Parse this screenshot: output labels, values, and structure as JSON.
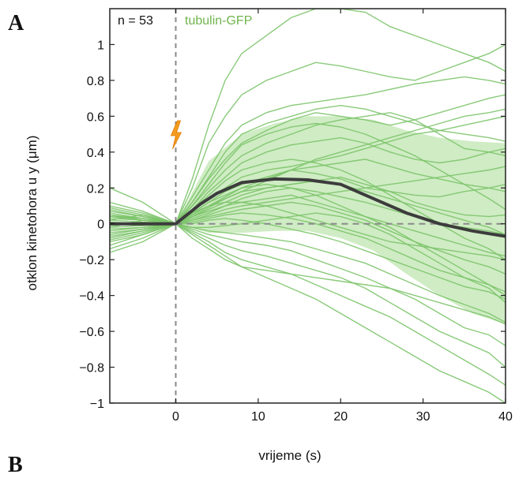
{
  "panel_label_a": "A",
  "panel_label_b": "B",
  "n_label": "n = 53",
  "series_label": "tubulin-GFP",
  "colors": {
    "traces": "#7cc46a",
    "band": "#bfe6b0",
    "mean": "#3c3c3c",
    "flash": "#f39c1e"
  },
  "chart_data": {
    "type": "line",
    "xlabel": "vrijeme (s)",
    "ylabel": "otklon kinetohora u y (μm)",
    "xlim": [
      -8,
      40
    ],
    "ylim": [
      -1,
      1.2
    ],
    "xticks": [
      0,
      10,
      20,
      30,
      40
    ],
    "yticks": [
      -1,
      -0.8,
      -0.6,
      -0.4,
      -0.2,
      0,
      0.2,
      0.4,
      0.6,
      0.8,
      1
    ],
    "ytick_labels": [
      "−1",
      "−0.8",
      "−0.6",
      "−0.4",
      "−0.2",
      "0",
      "0.2",
      "0.4",
      "0.6",
      "0.8",
      "1"
    ],
    "event_marker": {
      "x": 0,
      "icon": "lightning-bolt-icon"
    },
    "mean": {
      "x": [
        -8,
        -6,
        -4,
        -2,
        0,
        3,
        5,
        8,
        12,
        16,
        20,
        24,
        28,
        32,
        36,
        40
      ],
      "y": [
        0,
        0,
        0,
        0,
        0,
        0.11,
        0.17,
        0.23,
        0.25,
        0.245,
        0.22,
        0.14,
        0.06,
        0,
        -0.04,
        -0.07
      ]
    },
    "spread_band": {
      "x": [
        0,
        4,
        8,
        12,
        16,
        20,
        24,
        28,
        32,
        36,
        40
      ],
      "upper": [
        0,
        0.35,
        0.5,
        0.56,
        0.6,
        0.6,
        0.58,
        0.52,
        0.48,
        0.46,
        0.45
      ],
      "lower": [
        0,
        -0.05,
        -0.05,
        -0.04,
        -0.04,
        -0.08,
        -0.15,
        -0.28,
        -0.4,
        -0.5,
        -0.56
      ]
    },
    "traces": [
      {
        "x": [
          -8,
          -4,
          0,
          2,
          4,
          6,
          8,
          11,
          14,
          17,
          20,
          23,
          26,
          29,
          32,
          35,
          38,
          40
        ],
        "y": [
          0.04,
          0.03,
          0,
          0.25,
          0.55,
          0.8,
          0.95,
          1.05,
          1.15,
          1.2,
          1.2,
          1.18,
          1.1,
          1.05,
          1.0,
          0.95,
          0.9,
          0.85
        ]
      },
      {
        "x": [
          -8,
          -4,
          0,
          2,
          4,
          6,
          8,
          11,
          14,
          17,
          20,
          23,
          26,
          29,
          32,
          35,
          38,
          40
        ],
        "y": [
          -0.03,
          -0.02,
          0,
          0.2,
          0.45,
          0.6,
          0.72,
          0.8,
          0.85,
          0.9,
          0.88,
          0.85,
          0.82,
          0.8,
          0.85,
          0.9,
          0.95,
          1.0
        ]
      },
      {
        "x": [
          -8,
          -4,
          0,
          2,
          4,
          6,
          8,
          11,
          14,
          17,
          20,
          23,
          26,
          29,
          32,
          35,
          38,
          40
        ],
        "y": [
          0.02,
          0.05,
          0,
          0.15,
          0.3,
          0.45,
          0.55,
          0.62,
          0.66,
          0.68,
          0.7,
          0.72,
          0.75,
          0.78,
          0.8,
          0.82,
          0.8,
          0.78
        ]
      },
      {
        "x": [
          -8,
          -4,
          0,
          2,
          4,
          6,
          8,
          11,
          14,
          17,
          20,
          23,
          26,
          29,
          32,
          35,
          38,
          40
        ],
        "y": [
          0.1,
          0.06,
          0,
          0.12,
          0.25,
          0.36,
          0.45,
          0.52,
          0.58,
          0.62,
          0.6,
          0.58,
          0.55,
          0.58,
          0.62,
          0.66,
          0.7,
          0.72
        ]
      },
      {
        "x": [
          -8,
          -4,
          0,
          2,
          4,
          6,
          8,
          11,
          14,
          17,
          20,
          23,
          26,
          29,
          32,
          35,
          38,
          40
        ],
        "y": [
          -0.08,
          -0.04,
          0,
          0.1,
          0.2,
          0.3,
          0.38,
          0.45,
          0.5,
          0.55,
          0.58,
          0.6,
          0.62,
          0.58,
          0.5,
          0.42,
          0.4,
          0.38
        ]
      },
      {
        "x": [
          -8,
          -4,
          0,
          2,
          4,
          6,
          8,
          11,
          14,
          17,
          20,
          23,
          26,
          29,
          32,
          35,
          38,
          40
        ],
        "y": [
          0.05,
          0.02,
          0,
          0.08,
          0.18,
          0.26,
          0.34,
          0.4,
          0.44,
          0.46,
          0.48,
          0.45,
          0.4,
          0.36,
          0.34,
          0.36,
          0.4,
          0.42
        ]
      },
      {
        "x": [
          -8,
          -4,
          0,
          2,
          4,
          6,
          8,
          11,
          14,
          17,
          20,
          23,
          26,
          29,
          32,
          35,
          38,
          40
        ],
        "y": [
          -0.05,
          -0.03,
          0,
          0.07,
          0.14,
          0.2,
          0.26,
          0.3,
          0.32,
          0.35,
          0.38,
          0.42,
          0.46,
          0.5,
          0.52,
          0.55,
          0.58,
          0.6
        ]
      },
      {
        "x": [
          -8,
          -4,
          0,
          2,
          4,
          6,
          8,
          11,
          14,
          17,
          20,
          23,
          26,
          29,
          32,
          35,
          38,
          40
        ],
        "y": [
          0.02,
          0.01,
          0,
          0.06,
          0.12,
          0.18,
          0.22,
          0.26,
          0.3,
          0.28,
          0.25,
          0.2,
          0.18,
          0.16,
          0.15,
          0.18,
          0.2,
          0.22
        ]
      },
      {
        "x": [
          -8,
          -4,
          0,
          2,
          4,
          6,
          8,
          11,
          14,
          17,
          20,
          23,
          26,
          29,
          32,
          35,
          38,
          40
        ],
        "y": [
          -0.02,
          0.02,
          0,
          0.05,
          0.1,
          0.15,
          0.2,
          0.25,
          0.3,
          0.32,
          0.34,
          0.36,
          0.32,
          0.28,
          0.25,
          0.22,
          0.2,
          0.18
        ]
      },
      {
        "x": [
          -8,
          -4,
          0,
          2,
          4,
          6,
          8,
          11,
          14,
          17,
          20,
          23,
          26,
          29,
          32,
          35,
          38,
          40
        ],
        "y": [
          0.06,
          0.03,
          0,
          0.04,
          0.08,
          0.12,
          0.16,
          0.2,
          0.22,
          0.24,
          0.26,
          0.22,
          0.18,
          0.12,
          0.08,
          0.05,
          0.04,
          0.05
        ]
      },
      {
        "x": [
          -8,
          -4,
          0,
          2,
          4,
          6,
          8,
          11,
          14,
          17,
          20,
          23,
          26,
          29,
          32,
          35,
          38,
          40
        ],
        "y": [
          -0.1,
          -0.06,
          0,
          0.03,
          0.06,
          0.1,
          0.14,
          0.18,
          0.2,
          0.18,
          0.15,
          0.12,
          0.08,
          0.04,
          0.0,
          -0.02,
          -0.04,
          -0.06
        ]
      },
      {
        "x": [
          -8,
          -4,
          0,
          2,
          4,
          6,
          8,
          11,
          14,
          17,
          20,
          23,
          26,
          29,
          32,
          35,
          38,
          40
        ],
        "y": [
          0.03,
          0.02,
          0,
          0.04,
          0.07,
          0.1,
          0.12,
          0.14,
          0.16,
          0.12,
          0.08,
          0.04,
          0.0,
          -0.04,
          -0.08,
          -0.12,
          -0.16,
          -0.18
        ]
      },
      {
        "x": [
          -8,
          -4,
          0,
          2,
          4,
          6,
          8,
          11,
          14,
          17,
          20,
          23,
          26,
          29,
          32,
          35,
          38,
          40
        ],
        "y": [
          -0.04,
          -0.02,
          0,
          0.02,
          0.04,
          0.06,
          0.08,
          0.1,
          0.12,
          0.1,
          0.06,
          0.02,
          -0.04,
          -0.1,
          -0.15,
          -0.2,
          -0.24,
          -0.28
        ]
      },
      {
        "x": [
          -8,
          -4,
          0,
          2,
          4,
          6,
          8,
          11,
          14,
          17,
          20,
          23,
          26,
          29,
          32,
          35,
          38,
          40
        ],
        "y": [
          0.05,
          0.03,
          0,
          0.01,
          0.03,
          0.05,
          0.06,
          0.05,
          0.03,
          0.0,
          -0.04,
          -0.08,
          -0.14,
          -0.2,
          -0.26,
          -0.3,
          -0.34,
          -0.38
        ]
      },
      {
        "x": [
          -8,
          -4,
          0,
          2,
          4,
          6,
          8,
          11,
          14,
          17,
          20,
          23,
          26,
          29,
          32,
          35,
          38,
          40
        ],
        "y": [
          -0.06,
          -0.03,
          0,
          0.0,
          0.02,
          0.03,
          0.02,
          0.0,
          -0.03,
          -0.06,
          -0.1,
          -0.15,
          -0.2,
          -0.25,
          -0.3,
          -0.35,
          -0.38,
          -0.42
        ]
      },
      {
        "x": [
          -8,
          -4,
          0,
          2,
          4,
          6,
          8,
          11,
          14,
          17,
          20,
          23,
          26,
          29,
          32,
          35,
          38,
          40
        ],
        "y": [
          0.0,
          -0.01,
          0,
          -0.02,
          -0.04,
          -0.05,
          -0.06,
          -0.08,
          -0.1,
          -0.14,
          -0.18,
          -0.22,
          -0.28,
          -0.34,
          -0.4,
          -0.45,
          -0.5,
          -0.55
        ]
      },
      {
        "x": [
          -8,
          -4,
          0,
          2,
          4,
          6,
          8,
          11,
          14,
          17,
          20,
          23,
          26,
          29,
          32,
          35,
          38,
          40
        ],
        "y": [
          0.08,
          0.04,
          0,
          -0.03,
          -0.06,
          -0.08,
          -0.1,
          -0.12,
          -0.15,
          -0.2,
          -0.25,
          -0.3,
          -0.36,
          -0.42,
          -0.5,
          -0.58,
          -0.62,
          -0.68
        ]
      },
      {
        "x": [
          -8,
          -4,
          0,
          2,
          4,
          6,
          8,
          11,
          14,
          17,
          20,
          23,
          26,
          29,
          32,
          35,
          38,
          40
        ],
        "y": [
          -0.12,
          -0.06,
          0,
          -0.04,
          -0.08,
          -0.12,
          -0.15,
          -0.18,
          -0.22,
          -0.26,
          -0.3,
          -0.36,
          -0.44,
          -0.52,
          -0.6,
          -0.66,
          -0.72,
          -0.8
        ]
      },
      {
        "x": [
          -8,
          -4,
          0,
          2,
          4,
          6,
          8,
          11,
          14,
          17,
          20,
          23,
          26,
          29,
          32,
          35,
          38,
          40
        ],
        "y": [
          0.04,
          0.02,
          0,
          -0.05,
          -0.1,
          -0.16,
          -0.2,
          -0.24,
          -0.28,
          -0.34,
          -0.4,
          -0.46,
          -0.52,
          -0.6,
          -0.68,
          -0.76,
          -0.84,
          -0.9
        ]
      },
      {
        "x": [
          -8,
          -4,
          0,
          2,
          4,
          6,
          8,
          11,
          14,
          17,
          20,
          23,
          26,
          29,
          32,
          35,
          38,
          40
        ],
        "y": [
          -0.02,
          -0.01,
          0,
          -0.06,
          -0.12,
          -0.18,
          -0.24,
          -0.3,
          -0.36,
          -0.42,
          -0.5,
          -0.58,
          -0.66,
          -0.74,
          -0.82,
          -0.88,
          -0.94,
          -1.0
        ]
      },
      {
        "x": [
          -8,
          -4,
          0,
          2,
          4,
          6,
          8,
          11,
          14,
          17,
          20,
          23,
          26,
          29,
          32,
          35,
          38,
          40
        ],
        "y": [
          0.07,
          0.04,
          0,
          0.06,
          0.12,
          0.16,
          0.2,
          0.22,
          0.2,
          0.16,
          0.1,
          0.04,
          -0.02,
          -0.1,
          -0.18,
          -0.26,
          -0.34,
          -0.4
        ]
      },
      {
        "x": [
          -8,
          -4,
          0,
          2,
          4,
          6,
          8,
          11,
          14,
          17,
          20,
          23,
          26,
          29,
          32,
          35,
          38,
          40
        ],
        "y": [
          -0.07,
          -0.04,
          0,
          0.08,
          0.16,
          0.24,
          0.3,
          0.34,
          0.36,
          0.34,
          0.3,
          0.24,
          0.16,
          0.08,
          0.0,
          -0.08,
          -0.14,
          -0.2
        ]
      },
      {
        "x": [
          -8,
          -4,
          0,
          2,
          4,
          6,
          8,
          11,
          14,
          17,
          20,
          23,
          26,
          29,
          32,
          35,
          38,
          40
        ],
        "y": [
          0.12,
          0.07,
          0,
          0.04,
          0.09,
          0.14,
          0.18,
          0.2,
          0.22,
          0.24,
          0.22,
          0.18,
          0.14,
          0.1,
          0.06,
          0.02,
          -0.02,
          -0.06
        ]
      },
      {
        "x": [
          -8,
          -4,
          0,
          2,
          4,
          6,
          8,
          11,
          14,
          17,
          20,
          23,
          26,
          29,
          32,
          35,
          38,
          40
        ],
        "y": [
          -0.14,
          -0.08,
          0,
          0.02,
          0.05,
          0.08,
          0.1,
          0.12,
          0.14,
          0.16,
          0.18,
          0.2,
          0.22,
          0.24,
          0.26,
          0.28,
          0.3,
          0.32
        ]
      },
      {
        "x": [
          -8,
          -4,
          0,
          2,
          4,
          6,
          8,
          11,
          14,
          17,
          20,
          23,
          26,
          29,
          32,
          35,
          38,
          40
        ],
        "y": [
          0.01,
          0.0,
          0,
          0.1,
          0.22,
          0.34,
          0.44,
          0.5,
          0.54,
          0.56,
          0.54,
          0.5,
          0.44,
          0.38,
          0.3,
          0.22,
          0.14,
          0.08
        ]
      },
      {
        "x": [
          -8,
          -4,
          0,
          2,
          4,
          6,
          8,
          11,
          14,
          17,
          20,
          23,
          26,
          29,
          32,
          35,
          38,
          40
        ],
        "y": [
          -0.01,
          0.01,
          0,
          0.06,
          0.1,
          0.12,
          0.12,
          0.1,
          0.06,
          0.02,
          -0.02,
          -0.06,
          -0.1,
          -0.12,
          -0.14,
          -0.16,
          -0.18,
          -0.2
        ]
      },
      {
        "x": [
          -8,
          -4,
          0,
          2,
          4,
          6,
          8,
          11,
          14,
          17,
          20,
          23,
          26,
          29,
          32,
          35,
          38,
          40
        ],
        "y": [
          0.09,
          0.05,
          0,
          -0.02,
          -0.02,
          -0.01,
          0.0,
          0.02,
          0.04,
          0.06,
          0.04,
          0.0,
          -0.06,
          -0.14,
          -0.22,
          -0.3,
          -0.36,
          -0.44
        ]
      },
      {
        "x": [
          -8,
          -4,
          0,
          2,
          4,
          6,
          8,
          11,
          14,
          17,
          20,
          23,
          26,
          29,
          32,
          35,
          38,
          40
        ],
        "y": [
          -0.09,
          -0.05,
          0,
          0.12,
          0.26,
          0.4,
          0.5,
          0.56,
          0.6,
          0.64,
          0.66,
          0.64,
          0.6,
          0.56,
          0.52,
          0.5,
          0.48,
          0.46
        ]
      },
      {
        "x": [
          -8,
          -4,
          0,
          2,
          4,
          6,
          8,
          11,
          14,
          17,
          20,
          23,
          26,
          29,
          32,
          35,
          38,
          40
        ],
        "y": [
          0.2,
          0.12,
          0,
          0.05,
          0.1,
          0.14,
          0.18,
          0.24,
          0.3,
          0.36,
          0.4,
          0.44,
          0.48,
          0.52,
          0.56,
          0.6,
          0.62,
          0.64
        ]
      },
      {
        "x": [
          -8,
          -4,
          0,
          2,
          4,
          6,
          8,
          11,
          14,
          17,
          20,
          23,
          26,
          29,
          32,
          35,
          38,
          40
        ],
        "y": [
          -0.16,
          -0.1,
          0,
          -0.08,
          -0.14,
          -0.2,
          -0.24,
          -0.26,
          -0.28,
          -0.3,
          -0.32,
          -0.34,
          -0.36,
          -0.4,
          -0.44,
          -0.48,
          -0.52,
          -0.56
        ]
      }
    ]
  }
}
